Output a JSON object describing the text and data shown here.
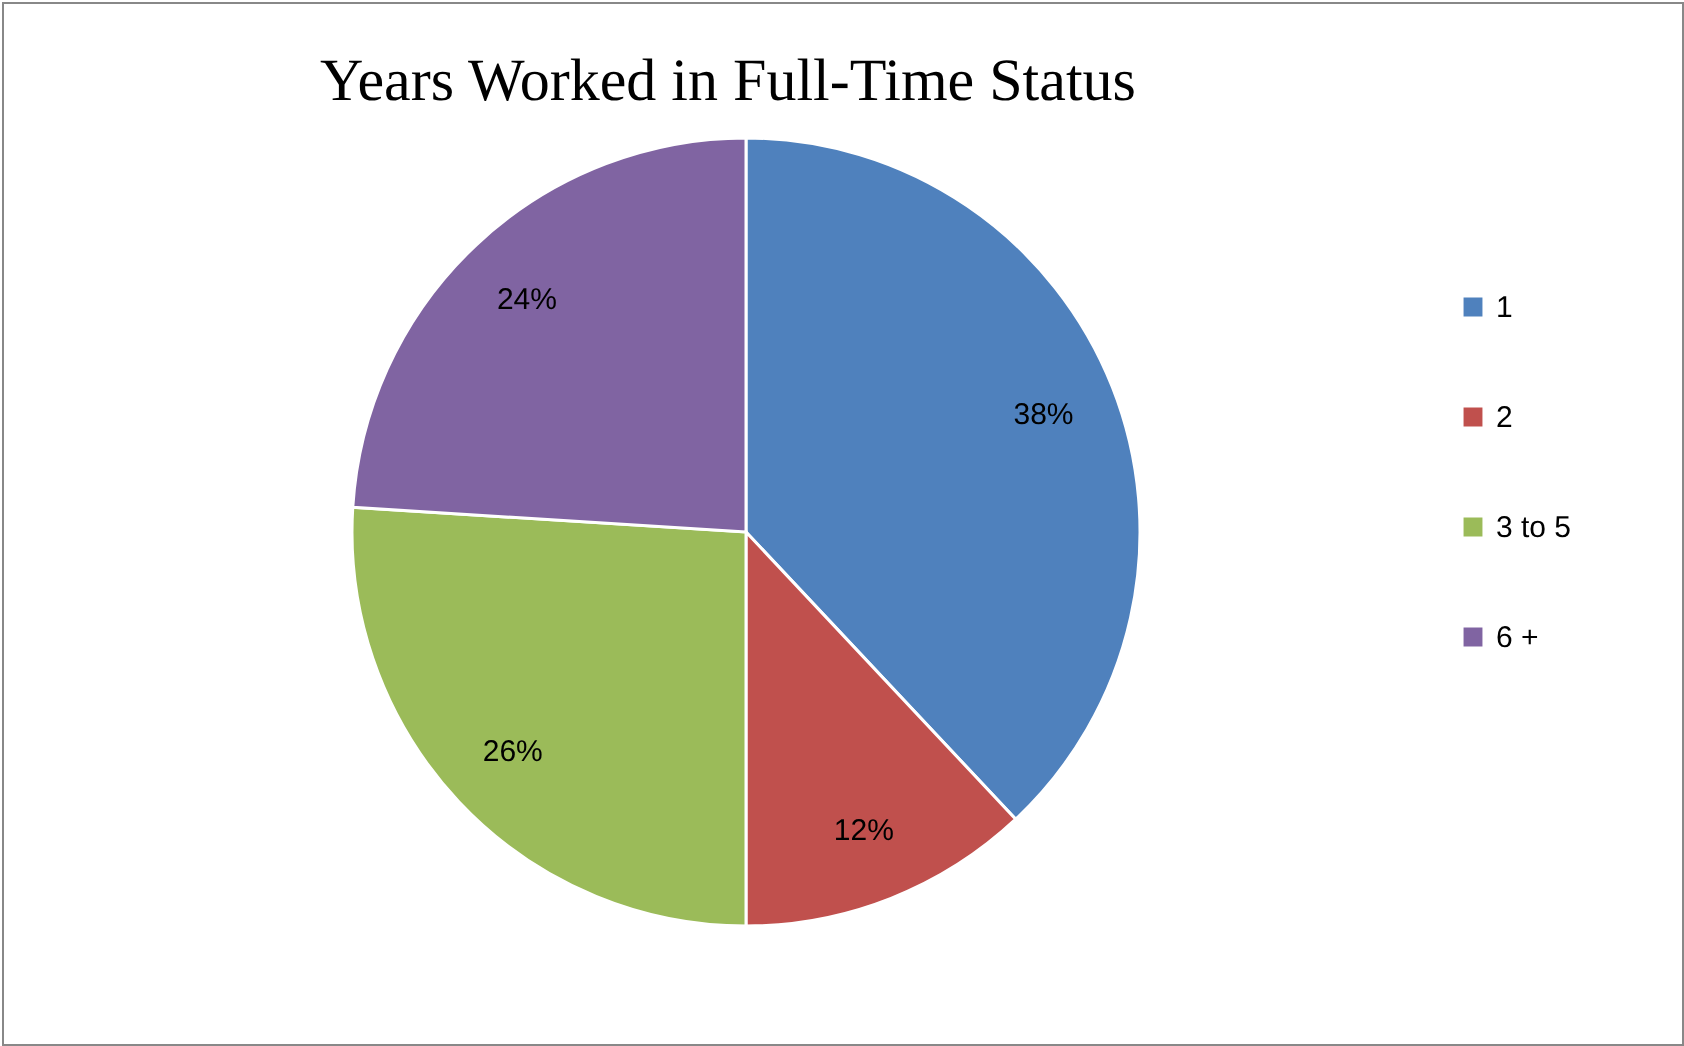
{
  "chart_data": {
    "type": "pie",
    "title": "Years Worked in Full-Time Status",
    "categories": [
      "1",
      "2",
      "3 to 5",
      "6 +"
    ],
    "values": [
      38,
      12,
      26,
      24
    ],
    "value_labels": [
      "38%",
      "12%",
      "26%",
      "24%"
    ],
    "colors": [
      "#4f81bd",
      "#c0504d",
      "#9bbb59",
      "#8064a2"
    ],
    "legend": "right"
  }
}
